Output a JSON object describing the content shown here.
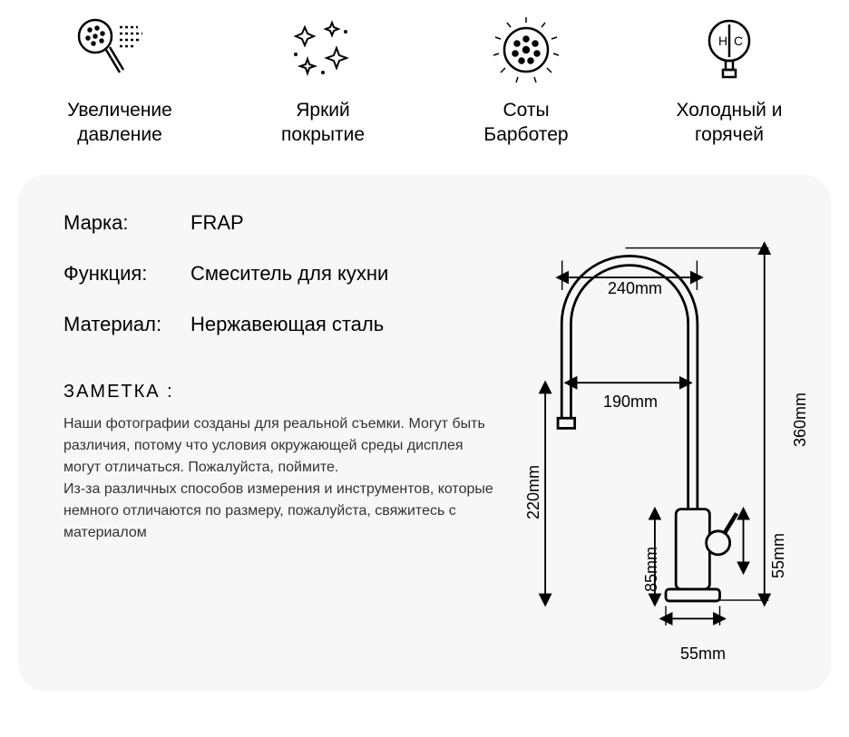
{
  "features": [
    {
      "label_line1": "Увеличение",
      "label_line2": "давление"
    },
    {
      "label_line1": "Яркий",
      "label_line2": "покрытие"
    },
    {
      "label_line1": "Соты",
      "label_line2": "Барботер"
    },
    {
      "label_line1": "Холодный и",
      "label_line2": "горячей"
    }
  ],
  "specs": {
    "brand_label": "Марка:",
    "brand_value": "FRAP",
    "function_label": "Функция:",
    "function_value": "Смеситель для кухни",
    "material_label": "Материал:",
    "material_value": "Нержавеющая сталь"
  },
  "note": {
    "title": "ЗАМЕТКА :",
    "text": "Наши фотографии созданы для реальной съемки. Могут быть различия, потому что условия окружающей среды дисплея могут отличаться. Пожалуйста, поймите.\nИз-за различных способов измерения и инструментов, которые немного отличаются по размеру, пожалуйста, свяжитесь с материалом"
  },
  "dimensions": {
    "top_width": "240mm",
    "spout_reach": "190mm",
    "spout_height": "220mm",
    "total_height": "360mm",
    "base_height": "85mm",
    "handle_height": "55mm",
    "base_width": "55mm"
  },
  "hot_cold": {
    "h": "H",
    "c": "C"
  },
  "colors": {
    "card_bg": "#f7f7f7",
    "stroke": "#000000",
    "text": "#000000"
  }
}
